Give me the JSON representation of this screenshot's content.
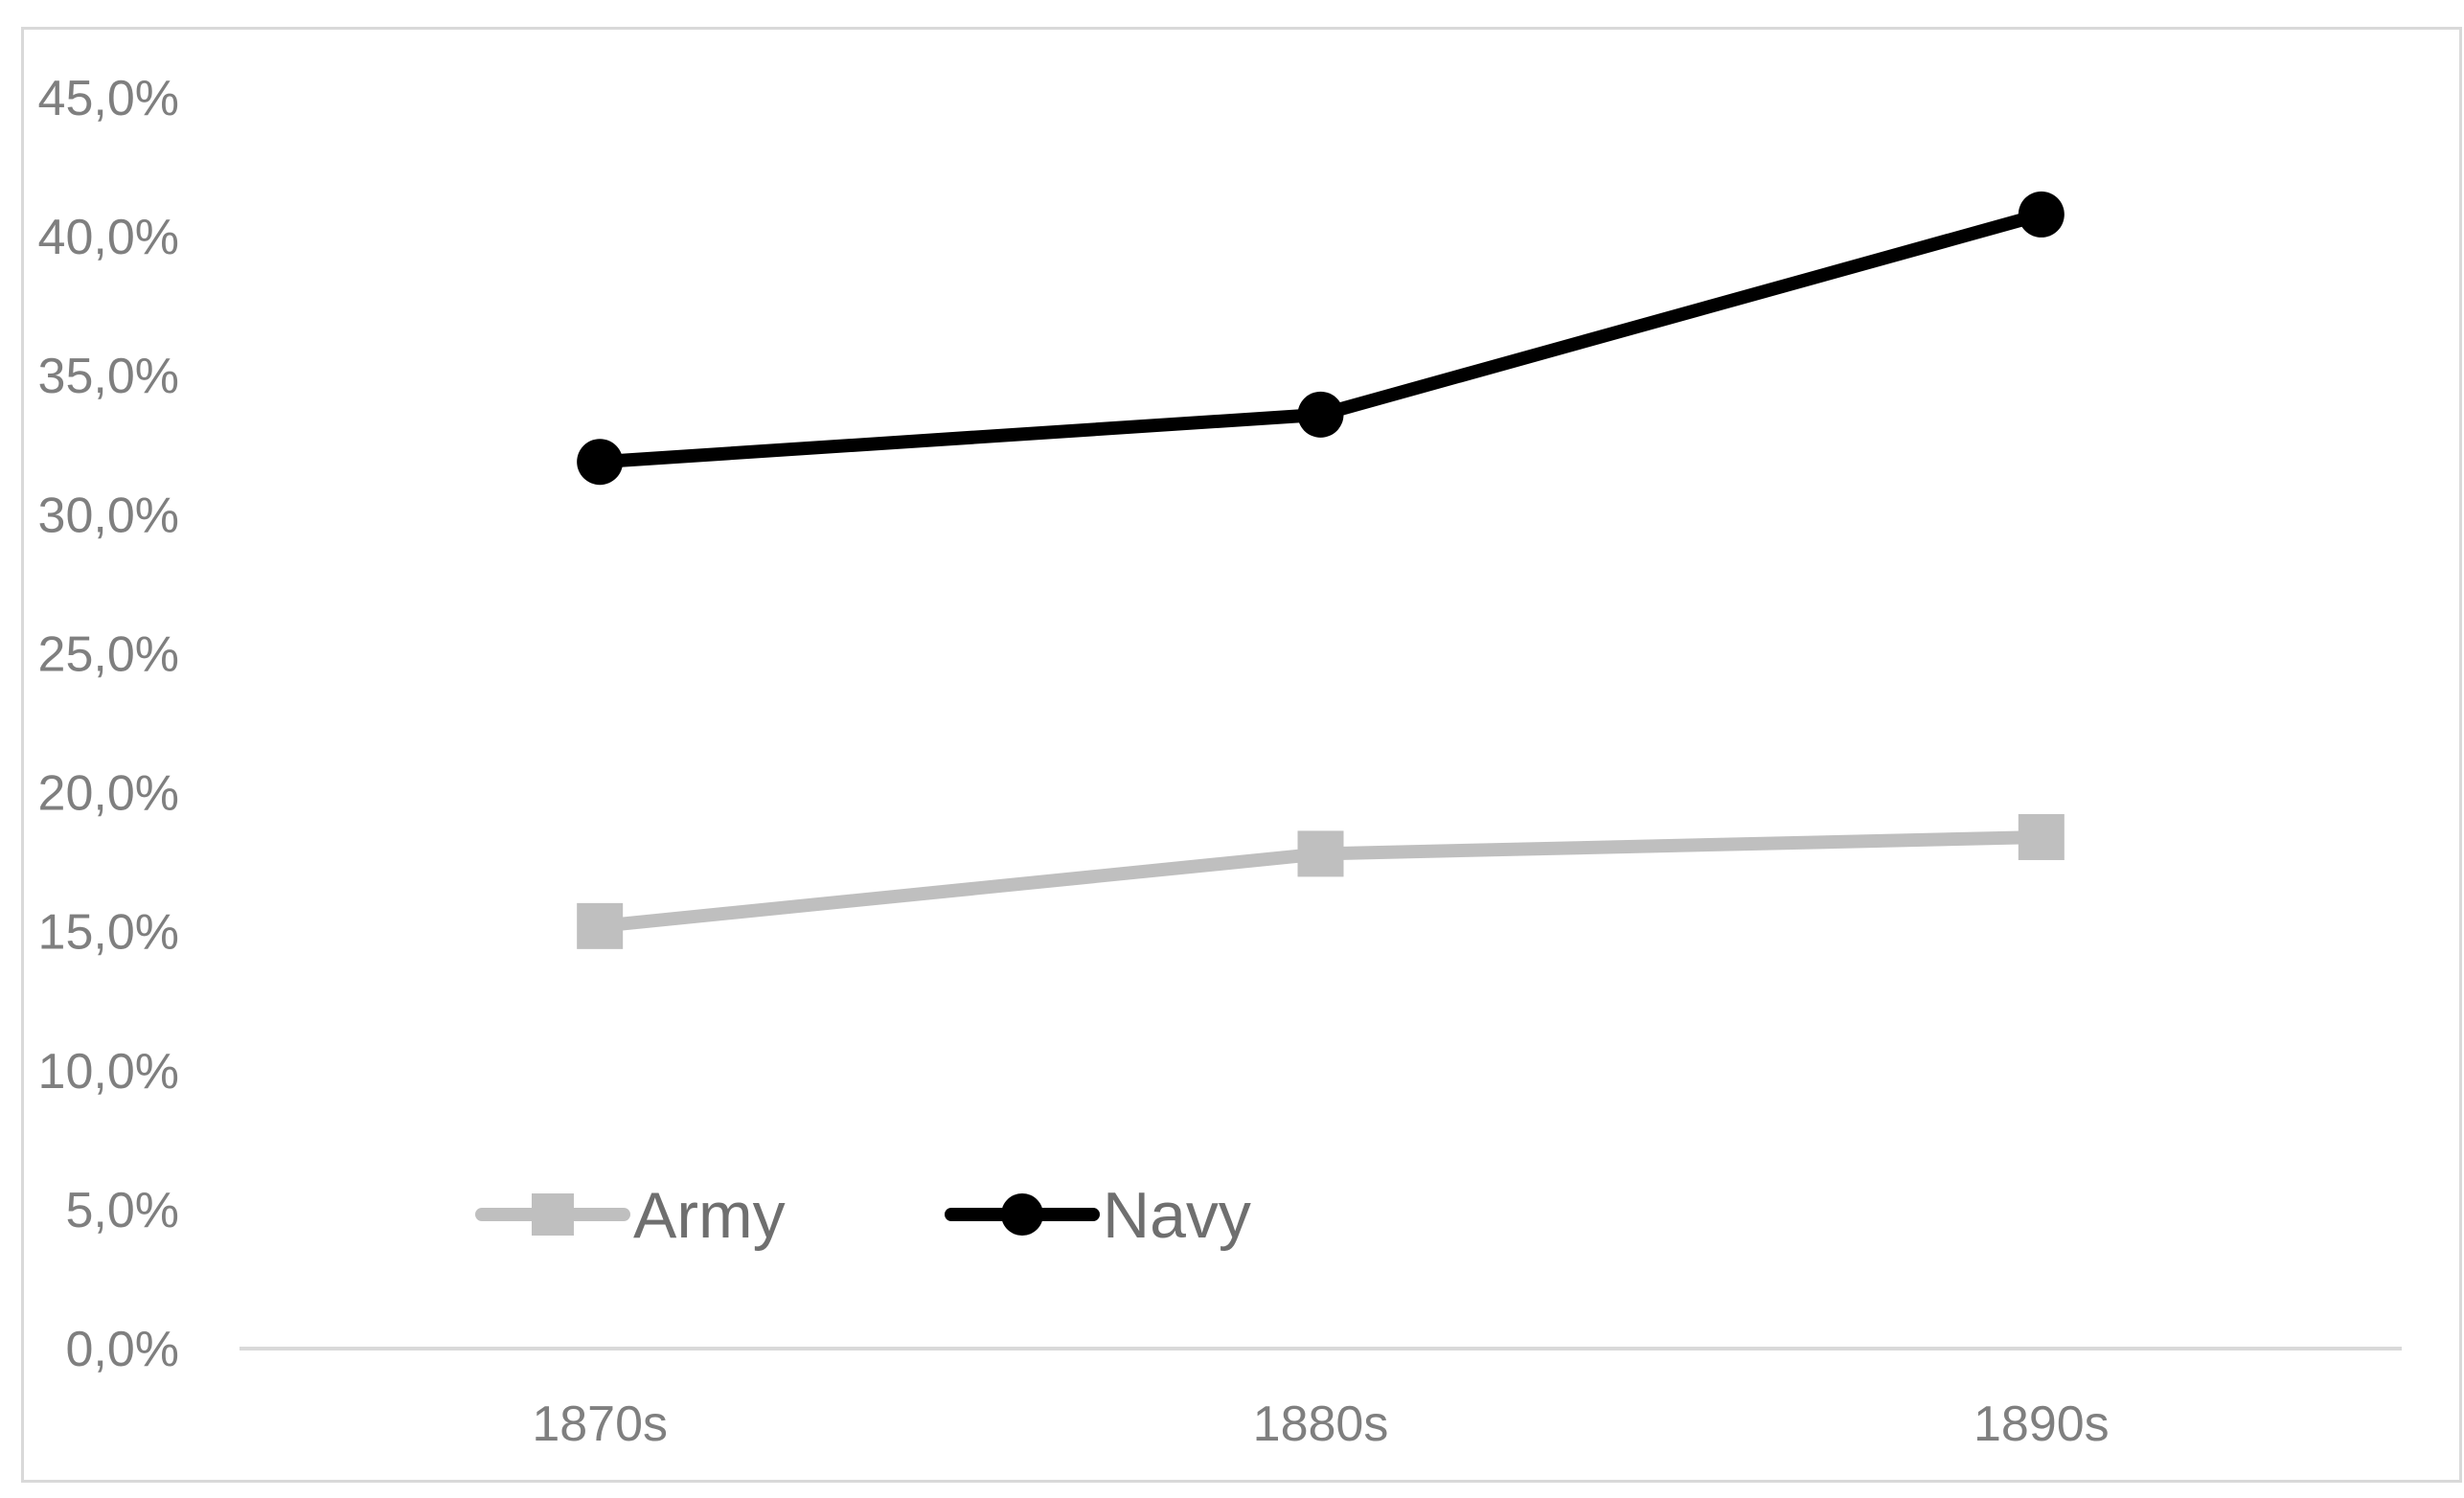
{
  "chart_data": {
    "type": "line",
    "title": "",
    "xlabel": "",
    "ylabel": "",
    "categories": [
      "1870s",
      "1880s",
      "1890s"
    ],
    "y_ticks": [
      "0,0%",
      "5,0%",
      "10,0%",
      "15,0%",
      "20,0%",
      "25,0%",
      "30,0%",
      "35,0%",
      "40,0%",
      "45,0%"
    ],
    "ylim": [
      0,
      45
    ],
    "grid": false,
    "legend_position": "bottom-left",
    "series": [
      {
        "name": "Army",
        "values": [
          15.2,
          17.8,
          18.4
        ],
        "color": "#bfbfbf",
        "marker": "square"
      },
      {
        "name": "Navy",
        "values": [
          31.9,
          33.6,
          40.8
        ],
        "color": "#000000",
        "marker": "circle"
      }
    ],
    "axis_color": "#d9d9d9"
  }
}
